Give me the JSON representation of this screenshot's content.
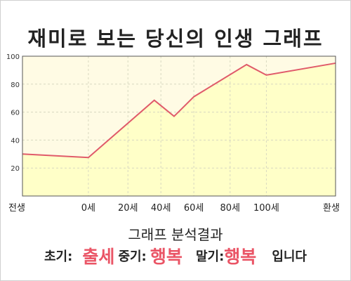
{
  "chart_data": {
    "type": "area",
    "title": "재미로 보는 당신의 인생 그래프",
    "x": [
      "전생",
      "0세",
      "20세",
      "40세",
      "60세",
      "80세",
      "100세",
      "환생"
    ],
    "series": [
      {
        "x": [
          -2.0,
          0.0,
          2.0,
          2.6,
          3.2,
          4.8,
          5.4,
          7.5
        ],
        "values": [
          30,
          27.5,
          68.5,
          57,
          71,
          94,
          86.5,
          95
        ]
      }
    ],
    "ylim": [
      0,
      100
    ],
    "yticks": [
      20,
      40,
      60,
      80,
      100
    ],
    "grid": true,
    "colors": {
      "line": "#e05a6a",
      "fill": "#ffffc8",
      "band": "#fffbe4"
    }
  },
  "result": {
    "title": "그래프 분석결과",
    "early_label": "초기:",
    "early_value": "출세",
    "mid_label": "중기:",
    "mid_value": "행복",
    "late_label": "말기:",
    "late_value": "행복",
    "suffix": "입니다"
  }
}
